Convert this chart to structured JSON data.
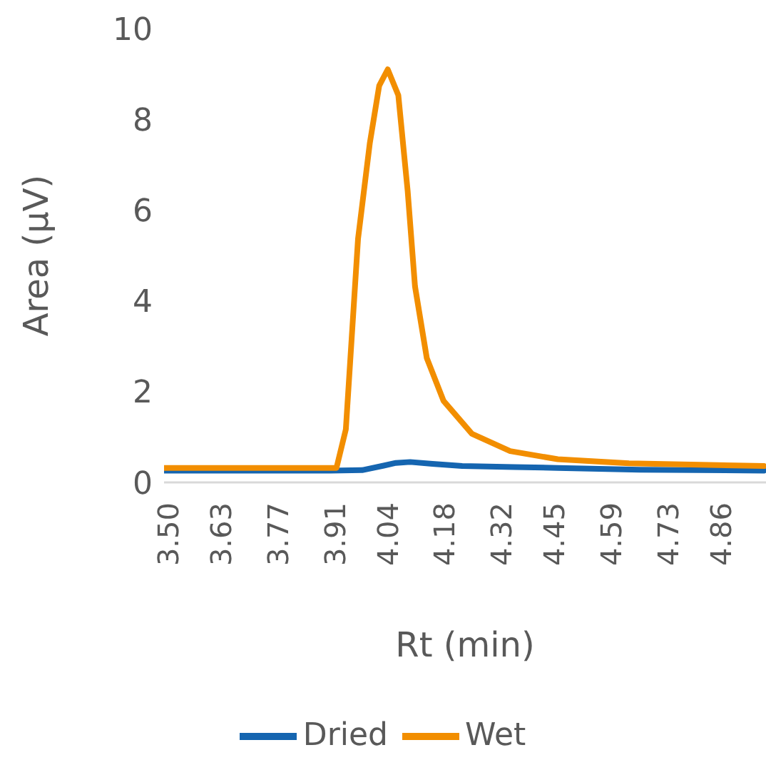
{
  "chart_data": {
    "type": "line",
    "xlabel": "Rt (min)",
    "ylabel": "Area (µV)",
    "xlim": [
      3.49,
      4.97
    ],
    "ylim": [
      0,
      10
    ],
    "xticks": [
      {
        "value": 3.5,
        "label": "3.50"
      },
      {
        "value": 3.63,
        "label": "3.63"
      },
      {
        "value": 3.77,
        "label": "3.77"
      },
      {
        "value": 3.91,
        "label": "3.91"
      },
      {
        "value": 4.04,
        "label": "4.04"
      },
      {
        "value": 4.18,
        "label": "4.18"
      },
      {
        "value": 4.32,
        "label": "4.32"
      },
      {
        "value": 4.45,
        "label": "4.45"
      },
      {
        "value": 4.59,
        "label": "4.59"
      },
      {
        "value": 4.73,
        "label": "4.73"
      },
      {
        "value": 4.86,
        "label": "4.86"
      }
    ],
    "yticks": [
      0,
      2,
      4,
      6,
      8,
      10
    ],
    "grid": false,
    "marker": "none",
    "legend": "bottom",
    "series": [
      {
        "name": "Dried",
        "color": "#1565b0",
        "x": [
          3.49,
          3.7,
          3.9,
          3.977,
          4.03,
          4.06,
          4.095,
          4.15,
          4.223,
          4.35,
          4.458,
          4.66,
          4.965
        ],
        "values": [
          0.26,
          0.26,
          0.26,
          0.27,
          0.37,
          0.43,
          0.45,
          0.41,
          0.36,
          0.34,
          0.32,
          0.28,
          0.26
        ]
      },
      {
        "name": "Wet",
        "color": "#f28e00",
        "x": [
          3.49,
          3.7,
          3.914,
          3.937,
          3.967,
          3.996,
          4.019,
          4.04,
          4.066,
          4.089,
          4.107,
          4.136,
          4.177,
          4.247,
          4.341,
          4.458,
          4.633,
          4.965
        ],
        "values": [
          0.32,
          0.32,
          0.32,
          1.17,
          5.37,
          7.48,
          8.74,
          9.1,
          8.53,
          6.42,
          4.32,
          2.74,
          1.8,
          1.07,
          0.69,
          0.51,
          0.42,
          0.36
        ]
      }
    ]
  }
}
